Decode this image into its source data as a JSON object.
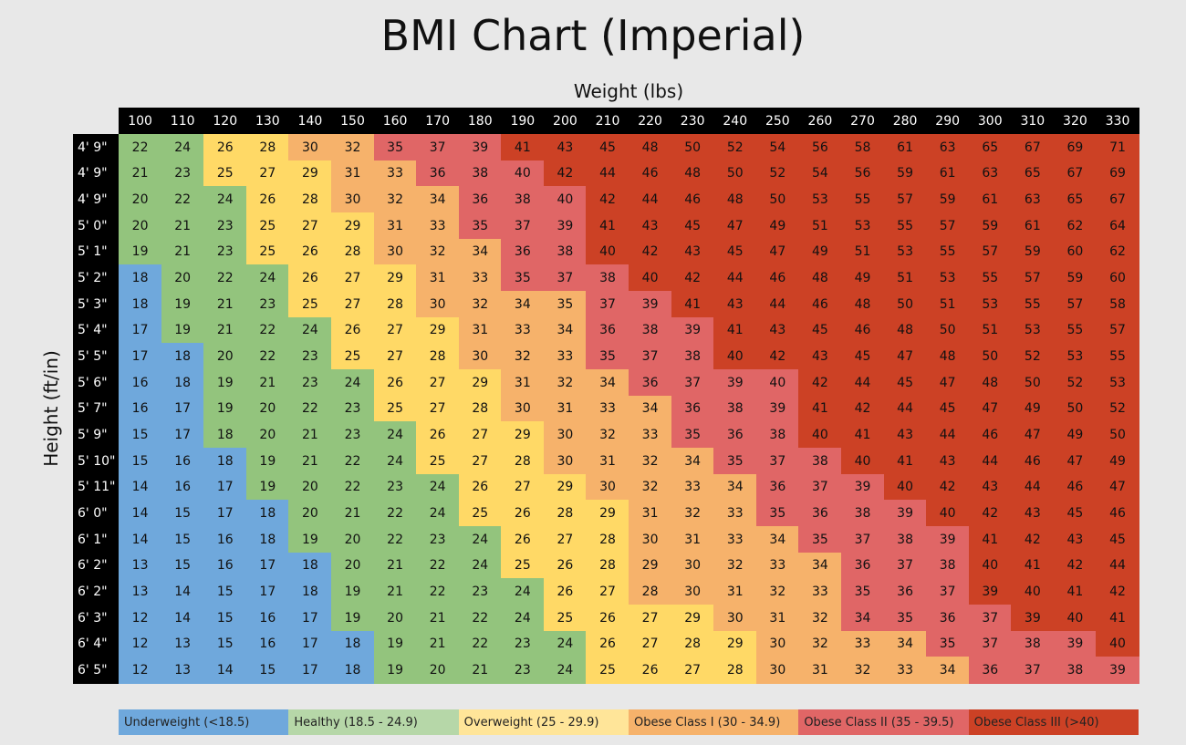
{
  "title": "BMI Chart (Imperial)",
  "x_label": "Weight (lbs)",
  "y_label": "Height (ft/in)",
  "weights": [
    100,
    110,
    120,
    130,
    140,
    150,
    160,
    170,
    180,
    190,
    200,
    210,
    220,
    230,
    240,
    250,
    260,
    270,
    280,
    290,
    300,
    310,
    320,
    330
  ],
  "legend": [
    {
      "label": "Underweight (<18.5)",
      "color": "#6fa8dc",
      "cell_color": "#6fa8dc"
    },
    {
      "label": "Healthy (18.5 - 24.9)",
      "color": "#b6d7a8",
      "cell_color": "#93c47d"
    },
    {
      "label": "Overweight (25 - 29.9)",
      "color": "#ffe599",
      "cell_color": "#ffd966"
    },
    {
      "label": "Obese Class I (30 - 34.9)",
      "color": "#f6b26b",
      "cell_color": "#f6b26b"
    },
    {
      "label": "Obese Class II (35 - 39.5)",
      "color": "#e06666",
      "cell_color": "#e06666"
    },
    {
      "label": "Obese Class III (>40)",
      "color": "#cc4125",
      "cell_color": "#cc4125"
    }
  ],
  "rows": [
    {
      "height": "4' 9\"",
      "bmi": [
        22,
        24,
        26,
        28,
        30,
        32,
        35,
        37,
        39,
        41,
        43,
        45,
        48,
        50,
        52,
        54,
        56,
        58,
        61,
        63,
        65,
        67,
        69,
        71
      ],
      "class": [
        1,
        1,
        2,
        2,
        3,
        3,
        4,
        4,
        4,
        5,
        5,
        5,
        5,
        5,
        5,
        5,
        5,
        5,
        5,
        5,
        5,
        5,
        5,
        5
      ]
    },
    {
      "height": "4' 9\"",
      "bmi": [
        21,
        23,
        25,
        27,
        29,
        31,
        33,
        36,
        38,
        40,
        42,
        44,
        46,
        48,
        50,
        52,
        54,
        56,
        59,
        61,
        63,
        65,
        67,
        69
      ],
      "class": [
        1,
        1,
        2,
        2,
        2,
        3,
        3,
        4,
        4,
        4,
        5,
        5,
        5,
        5,
        5,
        5,
        5,
        5,
        5,
        5,
        5,
        5,
        5,
        5
      ]
    },
    {
      "height": "4' 9\"",
      "bmi": [
        20,
        22,
        24,
        26,
        28,
        30,
        32,
        34,
        36,
        38,
        40,
        42,
        44,
        46,
        48,
        50,
        53,
        55,
        57,
        59,
        61,
        63,
        65,
        67
      ],
      "class": [
        1,
        1,
        1,
        2,
        2,
        3,
        3,
        3,
        4,
        4,
        4,
        5,
        5,
        5,
        5,
        5,
        5,
        5,
        5,
        5,
        5,
        5,
        5,
        5
      ]
    },
    {
      "height": "5' 0\"",
      "bmi": [
        20,
        21,
        23,
        25,
        27,
        29,
        31,
        33,
        35,
        37,
        39,
        41,
        43,
        45,
        47,
        49,
        51,
        53,
        55,
        57,
        59,
        61,
        62,
        64
      ],
      "class": [
        1,
        1,
        1,
        2,
        2,
        2,
        3,
        3,
        4,
        4,
        4,
        5,
        5,
        5,
        5,
        5,
        5,
        5,
        5,
        5,
        5,
        5,
        5,
        5
      ]
    },
    {
      "height": "5' 1\"",
      "bmi": [
        19,
        21,
        23,
        25,
        26,
        28,
        30,
        32,
        34,
        36,
        38,
        40,
        42,
        43,
        45,
        47,
        49,
        51,
        53,
        55,
        57,
        59,
        60,
        62
      ],
      "class": [
        1,
        1,
        1,
        2,
        2,
        2,
        3,
        3,
        3,
        4,
        4,
        5,
        5,
        5,
        5,
        5,
        5,
        5,
        5,
        5,
        5,
        5,
        5,
        5
      ]
    },
    {
      "height": "5' 2\"",
      "bmi": [
        18,
        20,
        22,
        24,
        26,
        27,
        29,
        31,
        33,
        35,
        37,
        38,
        40,
        42,
        44,
        46,
        48,
        49,
        51,
        53,
        55,
        57,
        59,
        60
      ],
      "class": [
        0,
        1,
        1,
        1,
        2,
        2,
        2,
        3,
        3,
        4,
        4,
        4,
        5,
        5,
        5,
        5,
        5,
        5,
        5,
        5,
        5,
        5,
        5,
        5
      ]
    },
    {
      "height": "5' 3\"",
      "bmi": [
        18,
        19,
        21,
        23,
        25,
        27,
        28,
        30,
        32,
        34,
        35,
        37,
        39,
        41,
        43,
        44,
        46,
        48,
        50,
        51,
        53,
        55,
        57,
        58
      ],
      "class": [
        0,
        1,
        1,
        1,
        2,
        2,
        2,
        3,
        3,
        3,
        3,
        4,
        4,
        5,
        5,
        5,
        5,
        5,
        5,
        5,
        5,
        5,
        5,
        5
      ]
    },
    {
      "height": "5' 4\"",
      "bmi": [
        17,
        19,
        21,
        22,
        24,
        26,
        27,
        29,
        31,
        33,
        34,
        36,
        38,
        39,
        41,
        43,
        45,
        46,
        48,
        50,
        51,
        53,
        55,
        57
      ],
      "class": [
        0,
        1,
        1,
        1,
        1,
        2,
        2,
        2,
        3,
        3,
        3,
        4,
        4,
        4,
        5,
        5,
        5,
        5,
        5,
        5,
        5,
        5,
        5,
        5
      ]
    },
    {
      "height": "5' 5\"",
      "bmi": [
        17,
        18,
        20,
        22,
        23,
        25,
        27,
        28,
        30,
        32,
        33,
        35,
        37,
        38,
        40,
        42,
        43,
        45,
        47,
        48,
        50,
        52,
        53,
        55
      ],
      "class": [
        0,
        0,
        1,
        1,
        1,
        2,
        2,
        2,
        3,
        3,
        3,
        4,
        4,
        4,
        5,
        5,
        5,
        5,
        5,
        5,
        5,
        5,
        5,
        5
      ]
    },
    {
      "height": "5' 6\"",
      "bmi": [
        16,
        18,
        19,
        21,
        23,
        24,
        26,
        27,
        29,
        31,
        32,
        34,
        36,
        37,
        39,
        40,
        42,
        44,
        45,
        47,
        48,
        50,
        52,
        53
      ],
      "class": [
        0,
        0,
        1,
        1,
        1,
        1,
        2,
        2,
        2,
        3,
        3,
        3,
        4,
        4,
        4,
        4,
        5,
        5,
        5,
        5,
        5,
        5,
        5,
        5
      ]
    },
    {
      "height": "5' 7\"",
      "bmi": [
        16,
        17,
        19,
        20,
        22,
        23,
        25,
        27,
        28,
        30,
        31,
        33,
        34,
        36,
        38,
        39,
        41,
        42,
        44,
        45,
        47,
        49,
        50,
        52
      ],
      "class": [
        0,
        0,
        1,
        1,
        1,
        1,
        2,
        2,
        2,
        3,
        3,
        3,
        3,
        4,
        4,
        4,
        5,
        5,
        5,
        5,
        5,
        5,
        5,
        5
      ]
    },
    {
      "height": "5' 9\"",
      "bmi": [
        15,
        17,
        18,
        20,
        21,
        23,
        24,
        26,
        27,
        29,
        30,
        32,
        33,
        35,
        36,
        38,
        40,
        41,
        43,
        44,
        46,
        47,
        49,
        50
      ],
      "class": [
        0,
        0,
        1,
        1,
        1,
        1,
        1,
        2,
        2,
        2,
        3,
        3,
        3,
        4,
        4,
        4,
        5,
        5,
        5,
        5,
        5,
        5,
        5,
        5
      ]
    },
    {
      "height": "5' 10\"",
      "bmi": [
        15,
        16,
        18,
        19,
        21,
        22,
        24,
        25,
        27,
        28,
        30,
        31,
        32,
        34,
        35,
        37,
        38,
        40,
        41,
        43,
        44,
        46,
        47,
        49
      ],
      "class": [
        0,
        0,
        0,
        1,
        1,
        1,
        1,
        2,
        2,
        2,
        3,
        3,
        3,
        3,
        4,
        4,
        4,
        5,
        5,
        5,
        5,
        5,
        5,
        5
      ]
    },
    {
      "height": "5' 11\"",
      "bmi": [
        14,
        16,
        17,
        19,
        20,
        22,
        23,
        24,
        26,
        27,
        29,
        30,
        32,
        33,
        34,
        36,
        37,
        39,
        40,
        42,
        43,
        44,
        46,
        47
      ],
      "class": [
        0,
        0,
        0,
        1,
        1,
        1,
        1,
        1,
        2,
        2,
        2,
        3,
        3,
        3,
        3,
        4,
        4,
        4,
        5,
        5,
        5,
        5,
        5,
        5
      ]
    },
    {
      "height": "6' 0\"",
      "bmi": [
        14,
        15,
        17,
        18,
        20,
        21,
        22,
        24,
        25,
        26,
        28,
        29,
        31,
        32,
        33,
        35,
        36,
        38,
        39,
        40,
        42,
        43,
        45,
        46
      ],
      "class": [
        0,
        0,
        0,
        0,
        1,
        1,
        1,
        1,
        2,
        2,
        2,
        2,
        3,
        3,
        3,
        4,
        4,
        4,
        4,
        5,
        5,
        5,
        5,
        5
      ]
    },
    {
      "height": "6' 1\"",
      "bmi": [
        14,
        15,
        16,
        18,
        19,
        20,
        22,
        23,
        24,
        26,
        27,
        28,
        30,
        31,
        33,
        34,
        35,
        37,
        38,
        39,
        41,
        42,
        43,
        45
      ],
      "class": [
        0,
        0,
        0,
        0,
        1,
        1,
        1,
        1,
        1,
        2,
        2,
        2,
        3,
        3,
        3,
        3,
        4,
        4,
        4,
        4,
        5,
        5,
        5,
        5
      ]
    },
    {
      "height": "6' 2\"",
      "bmi": [
        13,
        15,
        16,
        17,
        18,
        20,
        21,
        22,
        24,
        25,
        26,
        28,
        29,
        30,
        32,
        33,
        34,
        36,
        37,
        38,
        40,
        41,
        42,
        44
      ],
      "class": [
        0,
        0,
        0,
        0,
        0,
        1,
        1,
        1,
        1,
        2,
        2,
        2,
        3,
        3,
        3,
        3,
        3,
        4,
        4,
        4,
        5,
        5,
        5,
        5
      ]
    },
    {
      "height": "6' 2\"",
      "bmi": [
        13,
        14,
        15,
        17,
        18,
        19,
        21,
        22,
        23,
        24,
        26,
        27,
        28,
        30,
        31,
        32,
        33,
        35,
        36,
        37,
        39,
        40,
        41,
        42
      ],
      "class": [
        0,
        0,
        0,
        0,
        0,
        1,
        1,
        1,
        1,
        1,
        2,
        2,
        3,
        3,
        3,
        3,
        3,
        4,
        4,
        4,
        5,
        5,
        5,
        5
      ]
    },
    {
      "height": "6' 3\"",
      "bmi": [
        12,
        14,
        15,
        16,
        17,
        19,
        20,
        21,
        22,
        24,
        25,
        26,
        27,
        29,
        30,
        31,
        32,
        34,
        35,
        36,
        37,
        39,
        40,
        41
      ],
      "class": [
        0,
        0,
        0,
        0,
        0,
        1,
        1,
        1,
        1,
        1,
        2,
        2,
        2,
        2,
        3,
        3,
        3,
        4,
        4,
        4,
        4,
        5,
        5,
        5
      ]
    },
    {
      "height": "6' 4\"",
      "bmi": [
        12,
        13,
        15,
        16,
        17,
        18,
        19,
        21,
        22,
        23,
        24,
        26,
        27,
        28,
        29,
        30,
        32,
        33,
        34,
        35,
        37,
        38,
        39,
        40
      ],
      "class": [
        0,
        0,
        0,
        0,
        0,
        0,
        1,
        1,
        1,
        1,
        1,
        2,
        2,
        2,
        2,
        3,
        3,
        3,
        3,
        4,
        4,
        4,
        4,
        5
      ]
    },
    {
      "height": "6' 5\"",
      "bmi": [
        12,
        13,
        14,
        15,
        17,
        18,
        19,
        20,
        21,
        23,
        24,
        25,
        26,
        27,
        28,
        30,
        31,
        32,
        33,
        34,
        36,
        37,
        38,
        39
      ],
      "class": [
        0,
        0,
        0,
        0,
        0,
        0,
        1,
        1,
        1,
        1,
        1,
        2,
        2,
        2,
        2,
        3,
        3,
        3,
        3,
        3,
        4,
        4,
        4,
        4
      ]
    }
  ]
}
